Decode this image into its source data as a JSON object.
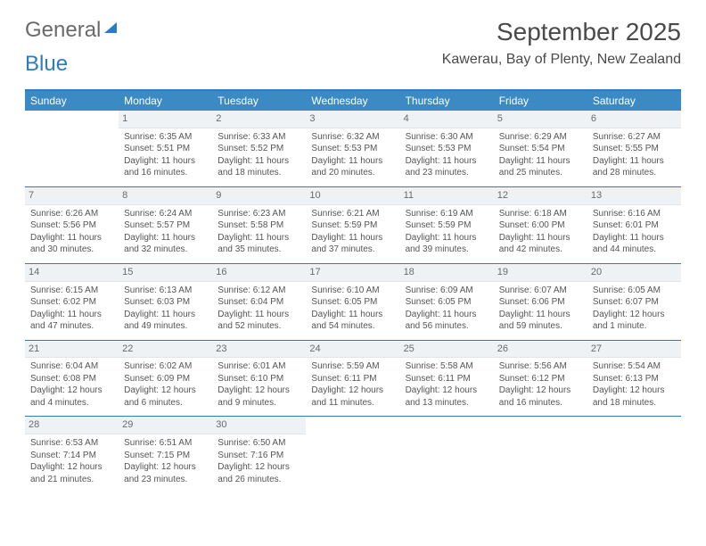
{
  "logo": {
    "part1": "General",
    "part2": "Blue"
  },
  "header": {
    "month_title": "September 2025",
    "location": "Kawerau, Bay of Plenty, New Zealand"
  },
  "colors": {
    "accent": "#3b8ac4",
    "rule": "#2d7bc0",
    "day_strip_bg": "#eef2f5",
    "text": "#555555"
  },
  "weekdays": [
    "Sunday",
    "Monday",
    "Tuesday",
    "Wednesday",
    "Thursday",
    "Friday",
    "Saturday"
  ],
  "weeks": [
    [
      null,
      {
        "n": "1",
        "sr": "Sunrise: 6:35 AM",
        "ss": "Sunset: 5:51 PM",
        "d1": "Daylight: 11 hours",
        "d2": "and 16 minutes."
      },
      {
        "n": "2",
        "sr": "Sunrise: 6:33 AM",
        "ss": "Sunset: 5:52 PM",
        "d1": "Daylight: 11 hours",
        "d2": "and 18 minutes."
      },
      {
        "n": "3",
        "sr": "Sunrise: 6:32 AM",
        "ss": "Sunset: 5:53 PM",
        "d1": "Daylight: 11 hours",
        "d2": "and 20 minutes."
      },
      {
        "n": "4",
        "sr": "Sunrise: 6:30 AM",
        "ss": "Sunset: 5:53 PM",
        "d1": "Daylight: 11 hours",
        "d2": "and 23 minutes."
      },
      {
        "n": "5",
        "sr": "Sunrise: 6:29 AM",
        "ss": "Sunset: 5:54 PM",
        "d1": "Daylight: 11 hours",
        "d2": "and 25 minutes."
      },
      {
        "n": "6",
        "sr": "Sunrise: 6:27 AM",
        "ss": "Sunset: 5:55 PM",
        "d1": "Daylight: 11 hours",
        "d2": "and 28 minutes."
      }
    ],
    [
      {
        "n": "7",
        "sr": "Sunrise: 6:26 AM",
        "ss": "Sunset: 5:56 PM",
        "d1": "Daylight: 11 hours",
        "d2": "and 30 minutes."
      },
      {
        "n": "8",
        "sr": "Sunrise: 6:24 AM",
        "ss": "Sunset: 5:57 PM",
        "d1": "Daylight: 11 hours",
        "d2": "and 32 minutes."
      },
      {
        "n": "9",
        "sr": "Sunrise: 6:23 AM",
        "ss": "Sunset: 5:58 PM",
        "d1": "Daylight: 11 hours",
        "d2": "and 35 minutes."
      },
      {
        "n": "10",
        "sr": "Sunrise: 6:21 AM",
        "ss": "Sunset: 5:59 PM",
        "d1": "Daylight: 11 hours",
        "d2": "and 37 minutes."
      },
      {
        "n": "11",
        "sr": "Sunrise: 6:19 AM",
        "ss": "Sunset: 5:59 PM",
        "d1": "Daylight: 11 hours",
        "d2": "and 39 minutes."
      },
      {
        "n": "12",
        "sr": "Sunrise: 6:18 AM",
        "ss": "Sunset: 6:00 PM",
        "d1": "Daylight: 11 hours",
        "d2": "and 42 minutes."
      },
      {
        "n": "13",
        "sr": "Sunrise: 6:16 AM",
        "ss": "Sunset: 6:01 PM",
        "d1": "Daylight: 11 hours",
        "d2": "and 44 minutes."
      }
    ],
    [
      {
        "n": "14",
        "sr": "Sunrise: 6:15 AM",
        "ss": "Sunset: 6:02 PM",
        "d1": "Daylight: 11 hours",
        "d2": "and 47 minutes."
      },
      {
        "n": "15",
        "sr": "Sunrise: 6:13 AM",
        "ss": "Sunset: 6:03 PM",
        "d1": "Daylight: 11 hours",
        "d2": "and 49 minutes."
      },
      {
        "n": "16",
        "sr": "Sunrise: 6:12 AM",
        "ss": "Sunset: 6:04 PM",
        "d1": "Daylight: 11 hours",
        "d2": "and 52 minutes."
      },
      {
        "n": "17",
        "sr": "Sunrise: 6:10 AM",
        "ss": "Sunset: 6:05 PM",
        "d1": "Daylight: 11 hours",
        "d2": "and 54 minutes."
      },
      {
        "n": "18",
        "sr": "Sunrise: 6:09 AM",
        "ss": "Sunset: 6:05 PM",
        "d1": "Daylight: 11 hours",
        "d2": "and 56 minutes."
      },
      {
        "n": "19",
        "sr": "Sunrise: 6:07 AM",
        "ss": "Sunset: 6:06 PM",
        "d1": "Daylight: 11 hours",
        "d2": "and 59 minutes."
      },
      {
        "n": "20",
        "sr": "Sunrise: 6:05 AM",
        "ss": "Sunset: 6:07 PM",
        "d1": "Daylight: 12 hours",
        "d2": "and 1 minute."
      }
    ],
    [
      {
        "n": "21",
        "sr": "Sunrise: 6:04 AM",
        "ss": "Sunset: 6:08 PM",
        "d1": "Daylight: 12 hours",
        "d2": "and 4 minutes."
      },
      {
        "n": "22",
        "sr": "Sunrise: 6:02 AM",
        "ss": "Sunset: 6:09 PM",
        "d1": "Daylight: 12 hours",
        "d2": "and 6 minutes."
      },
      {
        "n": "23",
        "sr": "Sunrise: 6:01 AM",
        "ss": "Sunset: 6:10 PM",
        "d1": "Daylight: 12 hours",
        "d2": "and 9 minutes."
      },
      {
        "n": "24",
        "sr": "Sunrise: 5:59 AM",
        "ss": "Sunset: 6:11 PM",
        "d1": "Daylight: 12 hours",
        "d2": "and 11 minutes."
      },
      {
        "n": "25",
        "sr": "Sunrise: 5:58 AM",
        "ss": "Sunset: 6:11 PM",
        "d1": "Daylight: 12 hours",
        "d2": "and 13 minutes."
      },
      {
        "n": "26",
        "sr": "Sunrise: 5:56 AM",
        "ss": "Sunset: 6:12 PM",
        "d1": "Daylight: 12 hours",
        "d2": "and 16 minutes."
      },
      {
        "n": "27",
        "sr": "Sunrise: 5:54 AM",
        "ss": "Sunset: 6:13 PM",
        "d1": "Daylight: 12 hours",
        "d2": "and 18 minutes."
      }
    ],
    [
      {
        "n": "28",
        "sr": "Sunrise: 6:53 AM",
        "ss": "Sunset: 7:14 PM",
        "d1": "Daylight: 12 hours",
        "d2": "and 21 minutes."
      },
      {
        "n": "29",
        "sr": "Sunrise: 6:51 AM",
        "ss": "Sunset: 7:15 PM",
        "d1": "Daylight: 12 hours",
        "d2": "and 23 minutes."
      },
      {
        "n": "30",
        "sr": "Sunrise: 6:50 AM",
        "ss": "Sunset: 7:16 PM",
        "d1": "Daylight: 12 hours",
        "d2": "and 26 minutes."
      },
      null,
      null,
      null,
      null
    ]
  ]
}
